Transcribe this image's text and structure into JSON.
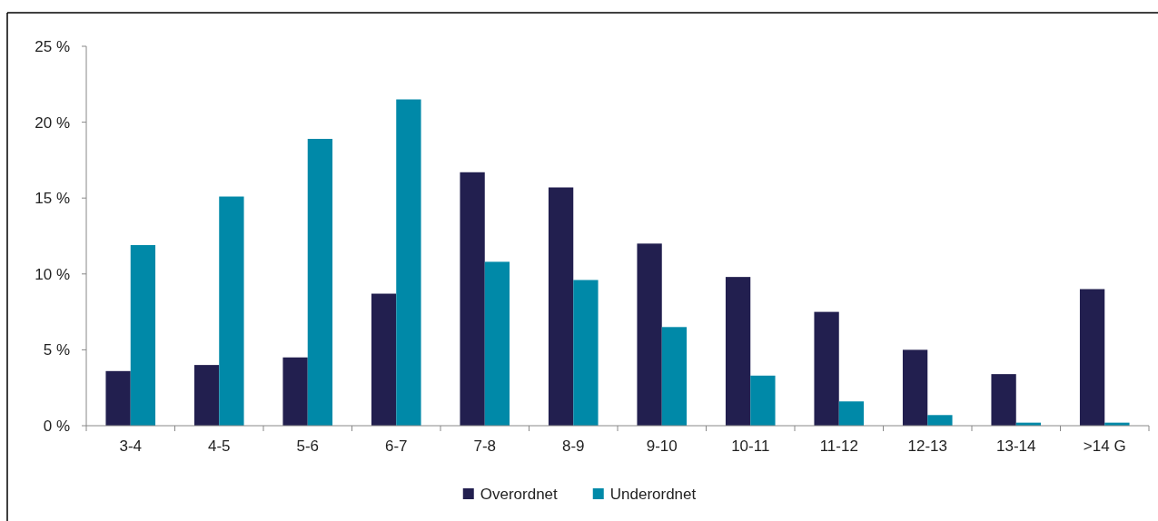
{
  "chart_data": {
    "type": "bar",
    "categories": [
      "3-4",
      "4-5",
      "5-6",
      "6-7",
      "7-8",
      "8-9",
      "9-10",
      "10-11",
      "11-12",
      "12-13",
      "13-14",
      ">14 G"
    ],
    "series": [
      {
        "name": "Overordnet",
        "color": "#221f4f",
        "values": [
          3.6,
          4.0,
          4.5,
          8.7,
          16.7,
          15.7,
          12.0,
          9.8,
          7.5,
          5.0,
          3.4,
          9.0
        ]
      },
      {
        "name": "Underordnet",
        "color": "#0089a8",
        "values": [
          11.9,
          15.1,
          18.9,
          21.5,
          10.8,
          9.6,
          6.5,
          3.3,
          1.6,
          0.7,
          0.2,
          0.2
        ]
      }
    ],
    "ylim": [
      0,
      25
    ],
    "yticks": [
      {
        "value": 0,
        "label": "0 %"
      },
      {
        "value": 5,
        "label": "5 %"
      },
      {
        "value": 10,
        "label": "10 %"
      },
      {
        "value": 15,
        "label": "15 %"
      },
      {
        "value": 20,
        "label": "20 %"
      },
      {
        "value": 25,
        "label": "25 %"
      }
    ],
    "grid": false,
    "legend": "bottom"
  }
}
